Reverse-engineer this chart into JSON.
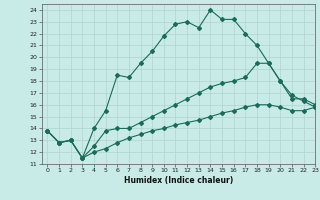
{
  "title": "",
  "xlabel": "Humidex (Indice chaleur)",
  "xlim": [
    -0.5,
    23
  ],
  "ylim": [
    11,
    24.5
  ],
  "yticks": [
    11,
    12,
    13,
    14,
    15,
    16,
    17,
    18,
    19,
    20,
    21,
    22,
    23,
    24
  ],
  "xticks": [
    0,
    1,
    2,
    3,
    4,
    5,
    6,
    7,
    8,
    9,
    10,
    11,
    12,
    13,
    14,
    15,
    16,
    17,
    18,
    19,
    20,
    21,
    22,
    23
  ],
  "background_color": "#c8ebe8",
  "grid_color": "#aed4d0",
  "line_color": "#1a6b5a",
  "line1_y": [
    13.8,
    12.8,
    13.0,
    11.5,
    14.0,
    15.5,
    18.5,
    18.3,
    19.5,
    20.5,
    21.8,
    22.8,
    23.0,
    22.5,
    24.0,
    23.2,
    23.2,
    22.0,
    21.0,
    19.5,
    18.0,
    16.8,
    16.3,
    15.8
  ],
  "line2_y": [
    13.8,
    12.8,
    13.0,
    11.5,
    12.5,
    13.8,
    14.0,
    14.0,
    14.5,
    15.0,
    15.5,
    16.0,
    16.5,
    17.0,
    17.5,
    17.8,
    18.0,
    18.3,
    19.5,
    19.5,
    18.0,
    16.5,
    16.5,
    16.0
  ],
  "line3_y": [
    13.8,
    12.8,
    13.0,
    11.5,
    12.0,
    12.3,
    12.8,
    13.2,
    13.5,
    13.8,
    14.0,
    14.3,
    14.5,
    14.7,
    15.0,
    15.3,
    15.5,
    15.8,
    16.0,
    16.0,
    15.8,
    15.5,
    15.5,
    15.8
  ]
}
